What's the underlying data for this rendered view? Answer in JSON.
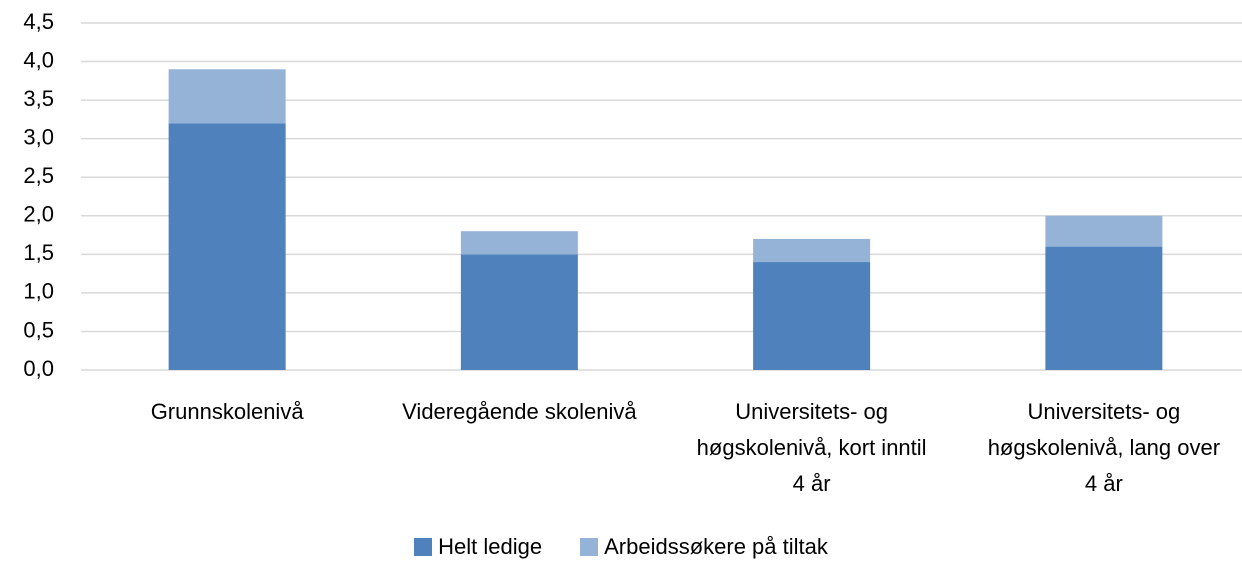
{
  "chart_data": {
    "type": "stacked_bar",
    "categories": [
      "Grunnskolenivå",
      "Videregående skolenivå",
      "Universitets- og høgskolenivå, kort inntil 4 år",
      "Universitets- og høgskolenivå, lang over 4 år"
    ],
    "series": [
      {
        "name": "Helt ledige",
        "color": "#4f81bd",
        "values": [
          3.2,
          1.5,
          1.4,
          1.6
        ]
      },
      {
        "name": "Arbeidssøkere på tiltak",
        "color": "#95b3d7",
        "values": [
          0.7,
          0.3,
          0.3,
          0.4
        ]
      }
    ],
    "ylim": [
      0,
      4.5
    ],
    "yticks": [
      {
        "value": 0,
        "label": "0,0"
      },
      {
        "value": 0.5,
        "label": "0,5"
      },
      {
        "value": 1,
        "label": "1,0"
      },
      {
        "value": 1.5,
        "label": "1,5"
      },
      {
        "value": 2,
        "label": "2,0"
      },
      {
        "value": 2.5,
        "label": "2,5"
      },
      {
        "value": 3,
        "label": "3,0"
      },
      {
        "value": 3.5,
        "label": "3,5"
      },
      {
        "value": 4,
        "label": "4,0"
      },
      {
        "value": 4.5,
        "label": "4,5"
      }
    ],
    "grid": true,
    "legend": "bottom"
  }
}
